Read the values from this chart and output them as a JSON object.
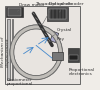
{
  "background_color": "#f0ede8",
  "title": "",
  "labels": {
    "draw_motor": "Draw motor",
    "threaded_spindle": "Threaded spindle",
    "optical_encoder": "Optical encoder",
    "crystal": "Crystal",
    "ray": "Ray",
    "proportional": "Proportional\nelectronics",
    "mechanism": "Mechanism of\ndisplacement",
    "goniometer": "Goniometer\nproportional"
  },
  "label_fontsize": 3.2,
  "colors": {
    "structure": "#888888",
    "dark_component": "#333333",
    "light_gray": "#bbbbbb",
    "blue_lines": "#4488cc",
    "box_fill": "#cccccc",
    "dark_box": "#444444",
    "white": "#ffffff",
    "outline": "#666666"
  }
}
